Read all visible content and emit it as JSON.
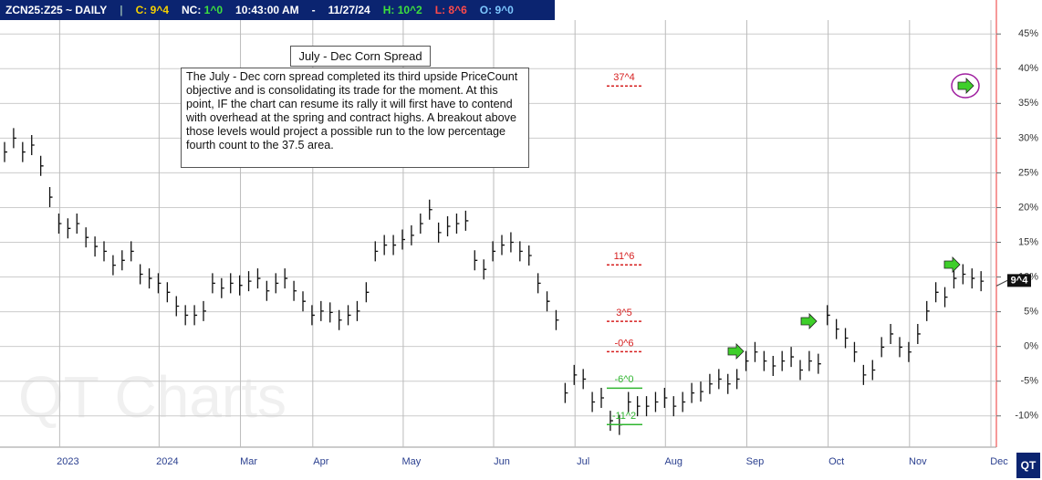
{
  "header": {
    "symbol": "ZCN25:Z25 ~ DAILY",
    "close_label": "C:",
    "close": "9^4",
    "net_label": "NC:",
    "net": "1^0",
    "time": "10:43:00 AM",
    "dash": "-",
    "date": "11/27/24",
    "high_label": "H:",
    "high": "10^2",
    "low_label": "L:",
    "low": "8^6",
    "open_label": "O:",
    "open": "9^0"
  },
  "chart_data": {
    "type": "price-bars",
    "title": "July - Dec Corn Spread",
    "annotation": "The July - Dec corn spread completed its third upside PriceCount objective and is consolidating its trade for the moment.  At this point, IF the chart can resume its rally it will first have to contend with overhead at the spring and contract highs.  A breakout above those levels would project a possible run to the low percentage fourth count to the 37.5 area.",
    "watermark": "QT Charts",
    "logo": "QT",
    "color": "#111111",
    "categories": [
      null,
      null,
      null,
      null,
      null,
      null,
      null,
      "2023",
      null,
      null,
      null,
      null,
      null,
      null,
      null,
      null,
      null,
      null,
      "2024",
      null,
      null,
      null,
      null,
      null,
      null,
      null,
      null,
      "Mar",
      null,
      null,
      null,
      null,
      null,
      null,
      null,
      "Apr",
      null,
      null,
      null,
      null,
      null,
      null,
      null,
      null,
      null,
      "May",
      null,
      null,
      null,
      null,
      null,
      null,
      null,
      null,
      null,
      "Jun",
      null,
      null,
      null,
      null,
      null,
      null,
      null,
      null,
      "Jul",
      null,
      null,
      null,
      null,
      null,
      null,
      null,
      null,
      null,
      "Aug",
      null,
      null,
      null,
      null,
      null,
      null,
      null,
      null,
      "Sep",
      null,
      null,
      null,
      null,
      null,
      null,
      null,
      null,
      "Oct",
      null,
      null,
      null,
      null,
      null,
      null,
      null,
      null,
      "Nov",
      null,
      null,
      null,
      null,
      null,
      null,
      null,
      null,
      "Dec"
    ],
    "values": [
      28,
      30,
      28,
      29,
      26,
      21.5,
      17.7,
      17,
      17.7,
      15.7,
      14.4,
      13.7,
      11.7,
      12.4,
      13.7,
      10.4,
      9.8,
      9.1,
      7.8,
      5.8,
      4.5,
      4.5,
      5.1,
      9.1,
      8.4,
      9.1,
      8.8,
      9.4,
      9.8,
      8,
      9.1,
      9.8,
      8,
      6.5,
      4.5,
      5.1,
      4.9,
      3.8,
      4.5,
      5.1,
      7.8,
      13.7,
      14.6,
      14.6,
      15.4,
      16,
      17.7,
      19.7,
      16.4,
      17.3,
      17.7,
      18.1,
      12.4,
      11.1,
      13.7,
      14.6,
      15,
      13.7,
      13.1,
      9.1,
      6.5,
      3.8,
      -6.7,
      -4.1,
      -4.7,
      -8,
      -7.4,
      -10.7,
      -11.3,
      -8,
      -8.6,
      -8.6,
      -8,
      -7.4,
      -8.6,
      -8,
      -6.7,
      -6.5,
      -5.4,
      -4.7,
      -5.4,
      -4.7,
      -2.1,
      -0.8,
      -2.1,
      -2.8,
      -2.1,
      -1.5,
      -3.4,
      -2.1,
      -2.5,
      4.5,
      2.5,
      1.2,
      -0.8,
      -4.1,
      -3.4,
      -0.1,
      1.8,
      -0.1,
      -0.8,
      1.8,
      5.1,
      7.8,
      7.1,
      9.8,
      10.4,
      9.8,
      9.4,
      null,
      null
    ],
    "ylim": [
      -14.5,
      47
    ],
    "yticks": [
      {
        "value": -10,
        "label": "-10%"
      },
      {
        "value": -5,
        "label": "-5%"
      },
      {
        "value": 0,
        "label": "0%"
      },
      {
        "value": 5,
        "label": "5%"
      },
      {
        "value": 10,
        "label": "10%"
      },
      {
        "value": 15,
        "label": "15%"
      },
      {
        "value": 20,
        "label": "20%"
      },
      {
        "value": 25,
        "label": "25%"
      },
      {
        "value": 30,
        "label": "30%"
      },
      {
        "value": 35,
        "label": "35%"
      },
      {
        "value": 40,
        "label": "40%"
      },
      {
        "value": 45,
        "label": "45%"
      }
    ],
    "grid": true,
    "levels": [
      {
        "value": 37.5,
        "label": "37^4",
        "color": "#d62020"
      },
      {
        "value": 11.75,
        "label": "11^6",
        "color": "#d62020"
      },
      {
        "value": 3.625,
        "label": "3^5",
        "color": "#d62020"
      },
      {
        "value": -0.75,
        "label": "-0^6",
        "color": "#d62020"
      },
      {
        "value": -6,
        "label": "-6^0",
        "color": "#2fb52f"
      },
      {
        "value": -11.25,
        "label": "-11^2",
        "color": "#2fb52f"
      }
    ],
    "last": {
      "value": 9.5,
      "label": "9^4"
    }
  }
}
